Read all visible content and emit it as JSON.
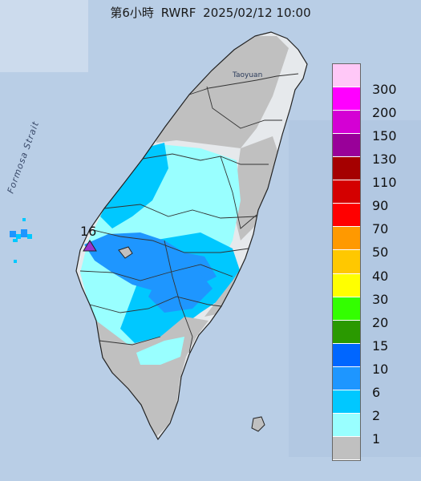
{
  "title": {
    "product": "第6小時",
    "model": "RWRF",
    "datetime": "2025/02/12 10:00"
  },
  "map_labels": {
    "strait": "Formosa Strait",
    "city": "Taoyuan",
    "max_value": "16"
  },
  "legend": [
    {
      "label": "300",
      "color": "#ffc8f7"
    },
    {
      "label": "200",
      "color": "#ff00ff"
    },
    {
      "label": "150",
      "color": "#d400d4"
    },
    {
      "label": "130",
      "color": "#990099"
    },
    {
      "label": "110",
      "color": "#a50000"
    },
    {
      "label": "90",
      "color": "#d40000"
    },
    {
      "label": "70",
      "color": "#ff0000"
    },
    {
      "label": "50",
      "color": "#ff9900"
    },
    {
      "label": "40",
      "color": "#ffc800"
    },
    {
      "label": "30",
      "color": "#ffff00"
    },
    {
      "label": "20",
      "color": "#33ff00"
    },
    {
      "label": "15",
      "color": "#2a9900"
    },
    {
      "label": "10",
      "color": "#0066ff"
    },
    {
      "label": "6",
      "color": "#1e96ff"
    },
    {
      "label": "2",
      "color": "#00c8ff"
    },
    {
      "label": "1",
      "color": "#99ffff"
    },
    {
      "label": "",
      "color": "#c0c0c0"
    }
  ],
  "colors": {
    "sea": "#b9cee6",
    "land_gray": "#c0c0c0",
    "rain_1": "#99ffff",
    "rain_2": "#00c8ff",
    "rain_6": "#1e96ff",
    "max_marker": "#9933cc"
  }
}
